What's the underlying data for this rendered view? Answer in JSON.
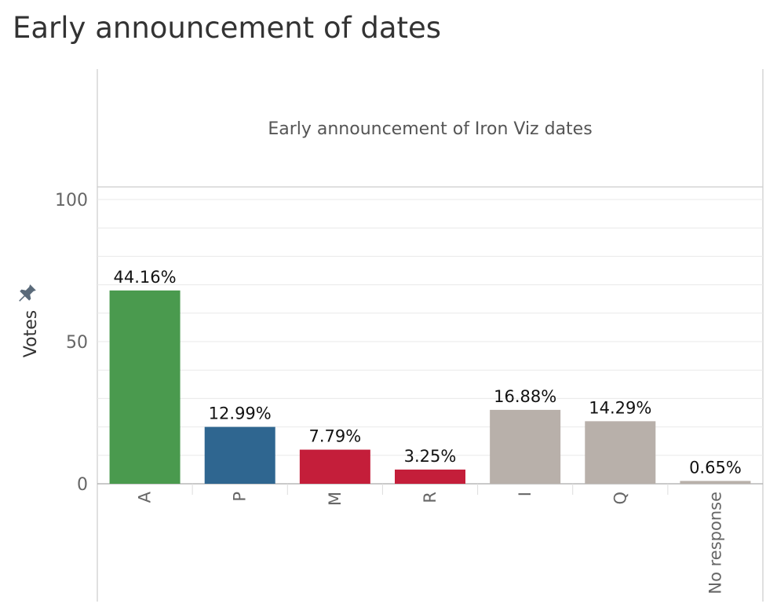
{
  "page": {
    "title": "Early announcement of dates"
  },
  "chart_data": {
    "type": "bar",
    "title": "Early announcement of Iron Viz dates",
    "xlabel": "",
    "ylabel": "Votes",
    "ylim": [
      0,
      100
    ],
    "yticks": [
      0,
      50,
      100
    ],
    "grid": true,
    "categories": [
      "A",
      "P",
      "M",
      "R",
      "I",
      "Q",
      "No response"
    ],
    "values": [
      68,
      20,
      12,
      5,
      26,
      22,
      1
    ],
    "labels": [
      "44.16%",
      "12.99%",
      "7.79%",
      "3.25%",
      "16.88%",
      "14.29%",
      "0.65%"
    ],
    "colors": [
      "#4a9a4e",
      "#2f6690",
      "#c41e3a",
      "#c41e3a",
      "#b8b0aa",
      "#b8b0aa",
      "#b8b0aa"
    ]
  }
}
